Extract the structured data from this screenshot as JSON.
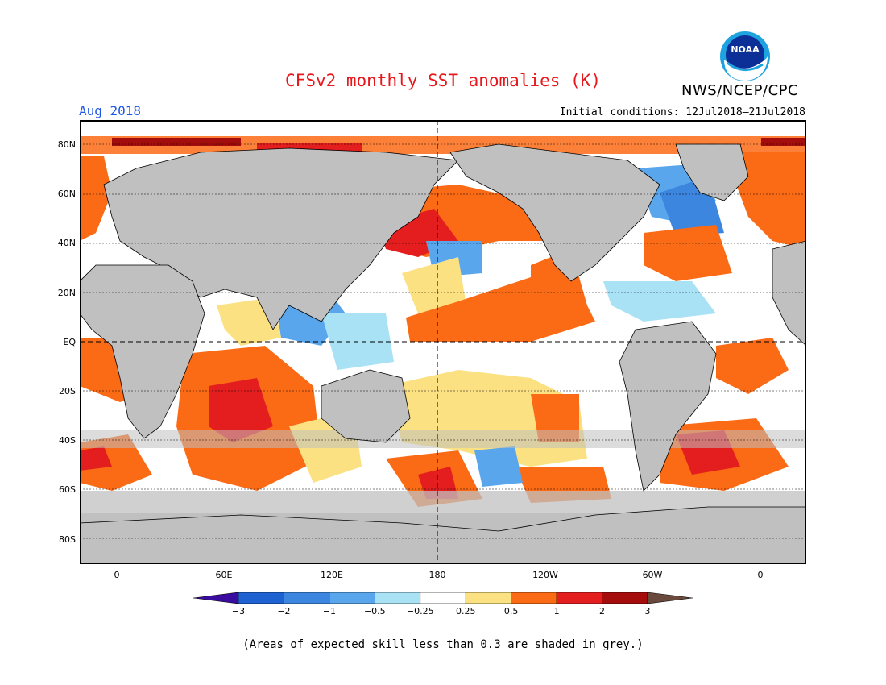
{
  "header": {
    "title": "CFSv2 monthly SST anomalies (K)",
    "valid_month": "Aug 2018",
    "initial_conditions": "Initial conditions: 12Jul2018–21Jul2018",
    "agency": "NWS/NCEP/CPC",
    "logo_text": "NOAA"
  },
  "axes": {
    "lat_labels": [
      "80N",
      "60N",
      "40N",
      "20N",
      "EQ",
      "20S",
      "40S",
      "60S",
      "80S"
    ],
    "lon_labels": [
      "0",
      "60E",
      "120E",
      "180",
      "120W",
      "60W",
      "0"
    ]
  },
  "colorbar": {
    "ticks": [
      "−3",
      "−2",
      "−1",
      "−0.5",
      "−0.25",
      "0.25",
      "0.5",
      "1",
      "2",
      "3"
    ],
    "colors": [
      "#3a0c9f",
      "#1d62d0",
      "#3c86e0",
      "#5aa6ec",
      "#a8e2f4",
      "#ffffff",
      "#fbe182",
      "#fb6a15",
      "#e41e1e",
      "#a50d0d",
      "#6a4a3c"
    ]
  },
  "footnote": "(Areas of expected skill less than 0.3 are shaded in grey.)",
  "colors": {
    "land": "#c0c0c0",
    "ocean_neutral": "#ffffff",
    "title": "#e8171b",
    "month": "#1f56e6"
  }
}
